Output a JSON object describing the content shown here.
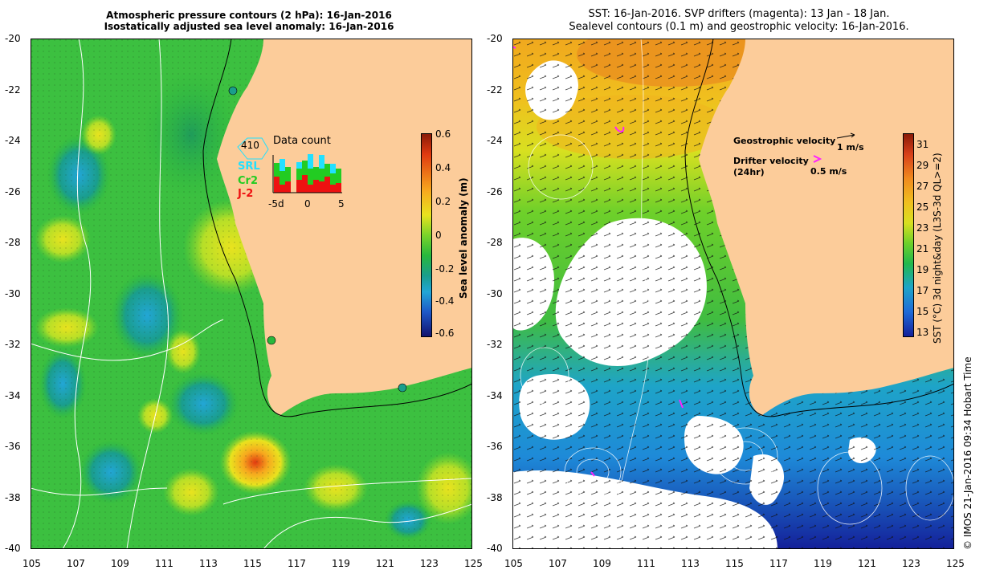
{
  "left_map": {
    "title_line1": "Atmospheric pressure contours (2 hPa): 16-Jan-2016",
    "title_line2": "Isostatically adjusted sea level anomaly: 16-Jan-2016",
    "x_ticks": [
      "105",
      "107",
      "109",
      "111",
      "113",
      "115",
      "117",
      "119",
      "121",
      "123",
      "125"
    ],
    "y_ticks": [
      "-20",
      "-22",
      "-24",
      "-26",
      "-28",
      "-30",
      "-32",
      "-34",
      "-36",
      "-38",
      "-40"
    ],
    "colorbar": {
      "label": "Sea level anomaly (m)",
      "ticks": [
        "0.6",
        "0.4",
        "0.2",
        "0",
        "-0.2",
        "-0.4",
        "-0.6"
      ],
      "colors": [
        "#8a1a08",
        "#e03a10",
        "#f7a81e",
        "#e9e31e",
        "#7ad42a",
        "#28b83c",
        "#1a9e8c",
        "#22a6d6",
        "#1e58c8",
        "#12126e"
      ]
    },
    "data_count": {
      "title": "Data count",
      "total": "410",
      "missions": [
        {
          "name": "SRL",
          "color": "#22e0ff"
        },
        {
          "name": "Cr2",
          "color": "#22cc22"
        },
        {
          "name": "J-2",
          "color": "#ee1111"
        }
      ],
      "x_labels": [
        "-5d",
        "0",
        "5"
      ]
    }
  },
  "right_map": {
    "title_line1": "SST: 16-Jan-2016. SVP drifters (magenta): 13 Jan - 18 Jan.",
    "title_line2": "Sealevel contours (0.1 m) and geostrophic velocity: 16-Jan-2016.",
    "x_ticks": [
      "105",
      "107",
      "109",
      "111",
      "113",
      "115",
      "117",
      "119",
      "121",
      "123",
      "125"
    ],
    "y_ticks": [
      "-20",
      "-22",
      "-24",
      "-26",
      "-28",
      "-30",
      "-32",
      "-34",
      "-36",
      "-38",
      "-40"
    ],
    "legend": {
      "geo_label": "Geostrophic velocity",
      "geo_scale": "1 m/s",
      "drifter_label": "Drifter velocity",
      "drifter_sub": "(24hr)",
      "drifter_scale": "0.5 m/s"
    },
    "colorbar": {
      "label": "SST (°C) 3d night&day (L3S-3d QL>=2)",
      "ticks": [
        "31",
        "29",
        "27",
        "25",
        "23",
        "21",
        "19",
        "17",
        "15",
        "13"
      ],
      "colors": [
        "#8a1a08",
        "#d8401a",
        "#f08a1e",
        "#f0c01e",
        "#d8e020",
        "#6ed02a",
        "#22b84c",
        "#1ea4c8",
        "#1e6ad8",
        "#14209a"
      ]
    }
  },
  "credit": "© IMOS 21-Jan-2016 09:34 Hobart Time",
  "land_color": "#fccc9a"
}
